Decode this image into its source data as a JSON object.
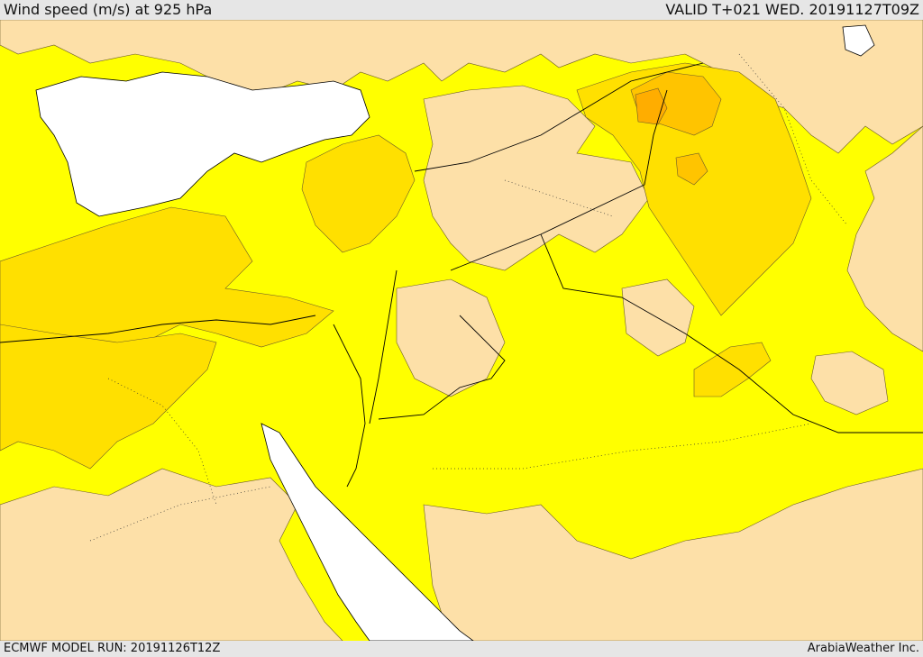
{
  "header": {
    "title": "Wind speed (m/s) at 925 hPa",
    "valid": "VALID T+021 WED. 20191127T09Z"
  },
  "footer": {
    "model_run": "ECMWF MODEL RUN: 20191126T12Z",
    "credit": "ArabiaWeather Inc."
  },
  "colors": {
    "sea_white": "#ffffff",
    "wind_low": "#fde0a8",
    "wind_mid": "#ffff00",
    "wind_high": "#ffe000",
    "wind_higher": "#ffc400",
    "wind_highest": "#ffad00",
    "land_outline": "#000000"
  }
}
